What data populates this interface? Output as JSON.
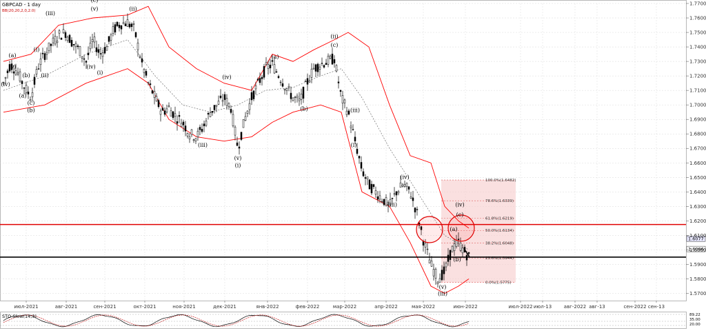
{
  "header": {
    "symbol_title": "GBPCAD - 1 day",
    "indicator_label": "BB(20,20,2,0,2.0)"
  },
  "stoch": {
    "label": "STO Slow(14,3)",
    "scale_top": "89.22",
    "scale_mid1": "35.00",
    "scale_mid2": "20.00"
  },
  "colors": {
    "background": "#ffffff",
    "grid": "#d9d9d9",
    "candle": "#000000",
    "bollinger": "#ff0000",
    "bollinger_mid": "#555555",
    "resistance": "#e00000",
    "support": "#000000",
    "fib_zone": "#f6c6c6"
  },
  "chart_data": {
    "type": "candlestick",
    "title": "GBPCAD - 1 day",
    "ylim": [
      1.565,
      1.77
    ],
    "y_ticks": [
      "1.7700",
      "1.7600",
      "1.7500",
      "1.7400",
      "1.7300",
      "1.7200",
      "1.7100",
      "1.7000",
      "1.6900",
      "1.6800",
      "1.6700",
      "1.6600",
      "1.6500",
      "1.6400",
      "1.6300",
      "1.6200",
      "1.6100",
      "1.6000",
      "1.5900",
      "1.5800",
      "1.5700"
    ],
    "x_ticks": [
      "июл-2021",
      "авг-2021",
      "сен-2021",
      "окт-2021",
      "ноя-2021",
      "дек-2021",
      "янв-2022",
      "фев-2022",
      "мар-2022",
      "апр-2022",
      "мая-2022",
      "июн-2022",
      "июл-2022",
      "июл-13",
      "авг-2022",
      "авг-13",
      "сен-2022",
      "сен-13"
    ],
    "price_series": [
      [
        0,
        1.715
      ],
      [
        10,
        1.728
      ],
      [
        20,
        1.723
      ],
      [
        30,
        1.713
      ],
      [
        40,
        1.705
      ],
      [
        50,
        1.726
      ],
      [
        60,
        1.735
      ],
      [
        70,
        1.742
      ],
      [
        80,
        1.748
      ],
      [
        90,
        1.75
      ],
      [
        100,
        1.743
      ],
      [
        110,
        1.738
      ],
      [
        120,
        1.73
      ],
      [
        130,
        1.745
      ],
      [
        140,
        1.735
      ],
      [
        150,
        1.74
      ],
      [
        160,
        1.752
      ],
      [
        170,
        1.756
      ],
      [
        180,
        1.757
      ],
      [
        190,
        1.752
      ],
      [
        200,
        1.73
      ],
      [
        210,
        1.715
      ],
      [
        220,
        1.705
      ],
      [
        230,
        1.695
      ],
      [
        240,
        1.698
      ],
      [
        250,
        1.692
      ],
      [
        260,
        1.688
      ],
      [
        270,
        1.68
      ],
      [
        280,
        1.678
      ],
      [
        290,
        1.685
      ],
      [
        300,
        1.695
      ],
      [
        310,
        1.7
      ],
      [
        320,
        1.705
      ],
      [
        330,
        1.698
      ],
      [
        340,
        1.67
      ],
      [
        350,
        1.69
      ],
      [
        360,
        1.705
      ],
      [
        370,
        1.715
      ],
      [
        380,
        1.725
      ],
      [
        390,
        1.728
      ],
      [
        400,
        1.72
      ],
      [
        410,
        1.712
      ],
      [
        420,
        1.705
      ],
      [
        430,
        1.702
      ],
      [
        440,
        1.715
      ],
      [
        450,
        1.725
      ],
      [
        460,
        1.728
      ],
      [
        470,
        1.73
      ],
      [
        480,
        1.732
      ],
      [
        490,
        1.705
      ],
      [
        500,
        1.695
      ],
      [
        510,
        1.675
      ],
      [
        520,
        1.655
      ],
      [
        530,
        1.645
      ],
      [
        540,
        1.64
      ],
      [
        550,
        1.635
      ],
      [
        560,
        1.63
      ],
      [
        570,
        1.64
      ],
      [
        580,
        1.645
      ],
      [
        590,
        1.64
      ],
      [
        600,
        1.625
      ],
      [
        610,
        1.605
      ],
      [
        620,
        1.59
      ],
      [
        630,
        1.58
      ],
      [
        640,
        1.585
      ],
      [
        650,
        1.6
      ],
      [
        660,
        1.605
      ],
      [
        667,
        1.6
      ],
      [
        675,
        1.595
      ]
    ],
    "bollinger_upper": [
      [
        0,
        1.73
      ],
      [
        40,
        1.735
      ],
      [
        80,
        1.755
      ],
      [
        130,
        1.76
      ],
      [
        180,
        1.762
      ],
      [
        210,
        1.768
      ],
      [
        240,
        1.74
      ],
      [
        280,
        1.725
      ],
      [
        320,
        1.715
      ],
      [
        360,
        1.71
      ],
      [
        390,
        1.735
      ],
      [
        420,
        1.73
      ],
      [
        450,
        1.738
      ],
      [
        480,
        1.745
      ],
      [
        500,
        1.75
      ],
      [
        530,
        1.74
      ],
      [
        560,
        1.7
      ],
      [
        590,
        1.665
      ],
      [
        620,
        1.66
      ],
      [
        640,
        1.63
      ],
      [
        660,
        1.62
      ],
      [
        675,
        1.615
      ]
    ],
    "bollinger_mid": [
      [
        0,
        1.71
      ],
      [
        60,
        1.72
      ],
      [
        120,
        1.735
      ],
      [
        180,
        1.745
      ],
      [
        220,
        1.72
      ],
      [
        260,
        1.7
      ],
      [
        300,
        1.695
      ],
      [
        340,
        1.7
      ],
      [
        380,
        1.71
      ],
      [
        420,
        1.712
      ],
      [
        460,
        1.72
      ],
      [
        490,
        1.725
      ],
      [
        520,
        1.705
      ],
      [
        560,
        1.67
      ],
      [
        600,
        1.64
      ],
      [
        640,
        1.61
      ],
      [
        675,
        1.6
      ]
    ],
    "bollinger_lower": [
      [
        0,
        1.695
      ],
      [
        60,
        1.7
      ],
      [
        120,
        1.715
      ],
      [
        180,
        1.725
      ],
      [
        210,
        1.715
      ],
      [
        240,
        1.69
      ],
      [
        280,
        1.678
      ],
      [
        320,
        1.675
      ],
      [
        360,
        1.678
      ],
      [
        390,
        1.688
      ],
      [
        420,
        1.695
      ],
      [
        460,
        1.7
      ],
      [
        490,
        1.695
      ],
      [
        520,
        1.64
      ],
      [
        560,
        1.63
      ],
      [
        590,
        1.605
      ],
      [
        620,
        1.575
      ],
      [
        640,
        1.57
      ],
      [
        660,
        1.575
      ],
      [
        675,
        1.58
      ]
    ],
    "horizontal_lines": [
      {
        "name": "resistance",
        "value": 1.6175
      },
      {
        "name": "support",
        "value": 1.595
      }
    ],
    "fibonacci": {
      "levels": [
        "100.0%(1.6482)",
        "78.6%(1.6339)",
        "61.8%(1.6219)",
        "50.0%(1.6134)",
        "38.2%(1.6048)",
        "23.6%(1.5944)",
        "0.0%(1.5775)"
      ],
      "values": [
        1.6482,
        1.6339,
        1.6219,
        1.6134,
        1.6048,
        1.5944,
        1.5775
      ]
    },
    "price_tags": [
      {
        "label": "1.6077",
        "value": 1.6077
      },
      {
        "label": "1.6006",
        "value": 1.6006
      }
    ],
    "wave_labels": [
      {
        "t": "iv",
        "x": 3,
        "y": 1.713
      },
      {
        "t": "a",
        "x": 13,
        "y": 1.733
      },
      {
        "t": "v",
        "x": 13,
        "y": 1.725
      },
      {
        "t": "b",
        "x": 33,
        "y": 1.719
      },
      {
        "t": "a",
        "x": 28,
        "y": 1.705
      },
      {
        "t": "c",
        "x": 40,
        "y": 1.7
      },
      {
        "t": "b",
        "x": 40,
        "y": 1.695
      },
      {
        "t": "i",
        "x": 48,
        "y": 1.737
      },
      {
        "t": "ii",
        "x": 60,
        "y": 1.719
      },
      {
        "t": "iii",
        "x": 68,
        "y": 1.762
      },
      {
        "t": "iv",
        "x": 127,
        "y": 1.725
      },
      {
        "t": "c",
        "x": 132,
        "y": 1.771
      },
      {
        "t": "v",
        "x": 132,
        "y": 1.765
      },
      {
        "t": "i",
        "x": 140,
        "y": 1.721
      },
      {
        "t": "ii",
        "x": 188,
        "y": 1.765
      },
      {
        "t": "iii",
        "x": 289,
        "y": 1.671
      },
      {
        "t": "iv",
        "x": 324,
        "y": 1.718
      },
      {
        "t": "v",
        "x": 340,
        "y": 1.662
      },
      {
        "t": "i",
        "x": 340,
        "y": 1.657
      },
      {
        "t": "a",
        "x": 394,
        "y": 1.732
      },
      {
        "t": "b",
        "x": 436,
        "y": 1.696
      },
      {
        "t": "ii",
        "x": 480,
        "y": 1.746
      },
      {
        "t": "c",
        "x": 480,
        "y": 1.74
      },
      {
        "t": "iii",
        "x": 510,
        "y": 1.695
      },
      {
        "t": "i",
        "x": 508,
        "y": 1.671
      },
      {
        "t": "iv",
        "x": 582,
        "y": 1.649
      },
      {
        "t": "iii",
        "x": 564,
        "y": 1.63
      },
      {
        "t": "iv",
        "x": 662,
        "y": 1.63
      },
      {
        "t": "c",
        "x": 662,
        "y": 1.623
      },
      {
        "t": "a",
        "x": 653,
        "y": 1.613
      },
      {
        "t": "b",
        "x": 658,
        "y": 1.592
      },
      {
        "t": "v",
        "x": 637,
        "y": 1.573
      },
      {
        "t": "iii",
        "x": 637,
        "y": 1.5685
      }
    ],
    "highlight_circles": [
      {
        "x": 618,
        "y": 1.614
      },
      {
        "x": 664,
        "y": 1.615
      }
    ],
    "grid": true
  }
}
